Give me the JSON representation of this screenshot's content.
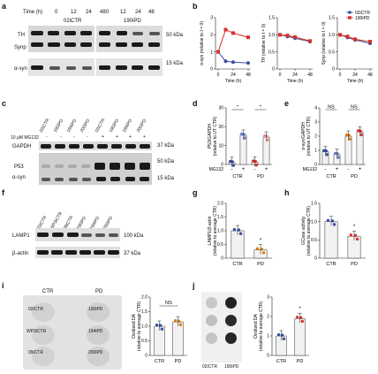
{
  "panels": {
    "a": "a",
    "b": "b",
    "c": "c",
    "d": "d",
    "e": "e",
    "f": "f",
    "g": "g",
    "h": "h",
    "i": "i",
    "j": "j"
  },
  "panel_a": {
    "time_label": "Time (h)",
    "lanes_left": [
      "0",
      "12",
      "24",
      "48"
    ],
    "lanes_right": [
      "0",
      "12",
      "24",
      "48"
    ],
    "group_left": "02iCTR",
    "group_right": "190iPD",
    "rows": [
      "TH",
      "Synp",
      "α-syn"
    ],
    "mw": [
      "50 kDa",
      "15 kDa"
    ]
  },
  "panel_c": {
    "treatment_label": "10 µM MG132",
    "samples": [
      "02iCTR",
      "190iPD",
      "194iPD",
      "200iPD",
      "02iCTR",
      "190iPD",
      "194iPD",
      "200iPD"
    ],
    "treat": [
      "-",
      "-",
      "-",
      "-",
      "+",
      "+",
      "+",
      "+"
    ],
    "rows": [
      "GAPDH",
      "P53",
      "α-syn"
    ],
    "mw": [
      "37 kDa",
      "50 kDa",
      "15 kDa"
    ]
  },
  "panel_f": {
    "samples": [
      "02iCTR",
      "WP3iCTR",
      "09iCTR",
      "190iPD",
      "194iPD",
      "200iPD"
    ],
    "rows": [
      "LAMP1",
      "β-actin"
    ],
    "mw": [
      "100 kDa",
      "37 kDa"
    ]
  },
  "panel_i": {
    "header": [
      "CTR",
      "PD"
    ],
    "wells_ctr": [
      "02iCTR",
      "WP3iCTR",
      "09iCTR"
    ],
    "wells_pd": [
      "190iPD",
      "194iPD",
      "200iPD"
    ]
  },
  "panel_j": {
    "labels": [
      "02iCTR",
      "190iPD"
    ]
  },
  "chart_data": [
    {
      "id": "b1",
      "type": "line",
      "ylabel": "α-syn (relative to t = 0)",
      "xlabel": "Time (h)",
      "x": [
        0,
        12,
        24,
        48
      ],
      "xticks": [
        "0",
        "24",
        "48"
      ],
      "ylim": [
        0,
        3
      ],
      "yticks": [
        "0",
        "1",
        "2",
        "3"
      ],
      "series": [
        {
          "name": "02iCTR",
          "color": "#3a4fa0",
          "values": [
            1.0,
            0.45,
            0.4,
            0.35
          ]
        },
        {
          "name": "190iPD",
          "color": "#d6312a",
          "values": [
            1.0,
            2.3,
            2.1,
            1.85
          ]
        }
      ]
    },
    {
      "id": "b2",
      "type": "line",
      "ylabel": "TH (relative to t = 0)",
      "xlabel": "Time (h)",
      "x": [
        0,
        12,
        24,
        48
      ],
      "xticks": [
        "0",
        "24",
        "48"
      ],
      "ylim": [
        0,
        1.5
      ],
      "yticks": [
        "0",
        "0.5",
        "1.0",
        "1.5"
      ],
      "series": [
        {
          "name": "02iCTR",
          "color": "#3a4fa0",
          "values": [
            1.0,
            0.95,
            0.9,
            0.8
          ]
        },
        {
          "name": "190iPD",
          "color": "#d6312a",
          "values": [
            1.0,
            0.98,
            0.93,
            0.82
          ]
        }
      ]
    },
    {
      "id": "b3",
      "type": "line",
      "ylabel": "Synp (relative to t = 0)",
      "xlabel": "Time (h)",
      "x": [
        0,
        12,
        24,
        48
      ],
      "xticks": [
        "0",
        "24",
        "48"
      ],
      "ylim": [
        0,
        1.5
      ],
      "yticks": [
        "0",
        "0.5",
        "1.0",
        "1.5"
      ],
      "legend": "top-right",
      "series": [
        {
          "name": "02iCTR",
          "color": "#3a4fa0",
          "values": [
            1.0,
            0.92,
            0.85,
            0.75
          ]
        },
        {
          "name": "190iPD",
          "color": "#d6312a",
          "values": [
            1.0,
            0.95,
            0.87,
            0.8
          ]
        }
      ]
    },
    {
      "id": "d",
      "type": "bar",
      "ylabel": "P53/GAPDH (relative to UT CTR)",
      "categories": [
        "-",
        "+",
        "-",
        "+"
      ],
      "groups": [
        "CTR",
        "PD"
      ],
      "treatment": "MG132",
      "values": [
        1,
        15.5,
        1.2,
        14.5
      ],
      "ylim": [
        0,
        30
      ],
      "yticks": [
        "0",
        "10",
        "20",
        "30"
      ],
      "significance": [
        "*",
        "*"
      ]
    },
    {
      "id": "e",
      "type": "bar",
      "ylabel": "α-syn/GAPDH (relative to UT CTR)",
      "categories": [
        "-",
        "+",
        "-",
        "+"
      ],
      "groups": [
        "CTR",
        "PD"
      ],
      "treatment": "MG132",
      "values": [
        0.9,
        0.7,
        2.0,
        2.3
      ],
      "ylim": [
        0,
        4
      ],
      "yticks": [
        "0",
        "1",
        "2",
        "3",
        "4"
      ],
      "significance": [
        "NS",
        "NS"
      ]
    },
    {
      "id": "g",
      "type": "bar",
      "ylabel": "LAMP1/β-actin (relative to average CTR)",
      "categories": [
        "CTR",
        "PD"
      ],
      "values": [
        1.0,
        0.3
      ],
      "ylim": [
        0,
        2.0
      ],
      "yticks": [
        "0",
        "0.5",
        "1.0",
        "1.5",
        "2.0"
      ],
      "significance": [
        "*"
      ]
    },
    {
      "id": "h",
      "type": "bar",
      "ylabel": "GCase activity (relative to average CTR)",
      "categories": [
        "CTR",
        "PD"
      ],
      "values": [
        1.0,
        0.6
      ],
      "ylim": [
        0,
        1.5
      ],
      "yticks": [
        "0",
        "0.5",
        "1.0",
        "1.5"
      ],
      "significance": [
        "*"
      ]
    },
    {
      "id": "i",
      "type": "bar",
      "ylabel": "Oxidized DA (relative to average CTR)",
      "categories": [
        "CTR",
        "PD"
      ],
      "values": [
        1.0,
        1.15
      ],
      "ylim": [
        0,
        2.0
      ],
      "yticks": [
        "0",
        "0.5",
        "1.0",
        "1.5",
        "2.0"
      ],
      "significance": [
        "NS"
      ]
    },
    {
      "id": "j",
      "type": "bar",
      "ylabel": "Oxidized DA (relative to average CTR)",
      "categories": [
        "CTR",
        "PD"
      ],
      "values": [
        1.0,
        1.9
      ],
      "ylim": [
        0,
        3
      ],
      "yticks": [
        "0",
        "1",
        "2",
        "3"
      ],
      "significance": [
        "*"
      ]
    }
  ]
}
